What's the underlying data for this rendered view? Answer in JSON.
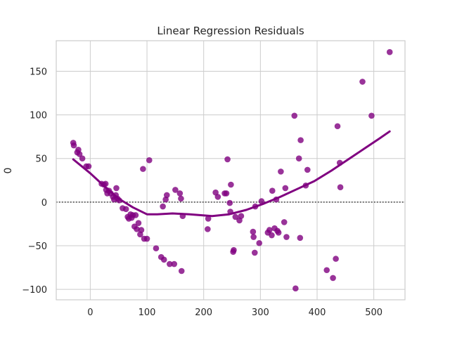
{
  "chart_data": {
    "type": "scatter",
    "title": "Linear Regression Residuals",
    "xlabel": "",
    "ylabel": "0",
    "xlim": [
      -60,
      555
    ],
    "ylim": [
      -112,
      185
    ],
    "xticks": [
      0,
      100,
      200,
      300,
      400,
      500
    ],
    "yticks": [
      -100,
      -50,
      0,
      50,
      100,
      150
    ],
    "grid": true,
    "reference_line": 0,
    "colors": {
      "points": "#800080",
      "line": "#800080",
      "grid": "#cccccc",
      "reference": "#333333",
      "frame": "#cccccc"
    },
    "points": [
      [
        -30,
        68
      ],
      [
        -29,
        65
      ],
      [
        -23,
        57
      ],
      [
        -21,
        60
      ],
      [
        -19,
        55
      ],
      [
        -14,
        50
      ],
      [
        -7,
        41
      ],
      [
        -3,
        41
      ],
      [
        20,
        21
      ],
      [
        24,
        20
      ],
      [
        27,
        21
      ],
      [
        28,
        14
      ],
      [
        30,
        10
      ],
      [
        33,
        13
      ],
      [
        36,
        10
      ],
      [
        40,
        6
      ],
      [
        42,
        3
      ],
      [
        45,
        8
      ],
      [
        46,
        16
      ],
      [
        48,
        4
      ],
      [
        51,
        2
      ],
      [
        57,
        -7
      ],
      [
        63,
        -8
      ],
      [
        66,
        -17
      ],
      [
        68,
        -19
      ],
      [
        71,
        -14
      ],
      [
        73,
        -18
      ],
      [
        75,
        -15
      ],
      [
        78,
        -28
      ],
      [
        80,
        -15
      ],
      [
        82,
        -31
      ],
      [
        85,
        -24
      ],
      [
        88,
        -37
      ],
      [
        90,
        -32
      ],
      [
        93,
        38
      ],
      [
        95,
        -42
      ],
      [
        100,
        -42
      ],
      [
        104,
        48
      ],
      [
        116,
        -53
      ],
      [
        125,
        -63
      ],
      [
        128,
        -5
      ],
      [
        130,
        -66
      ],
      [
        133,
        3
      ],
      [
        135,
        8
      ],
      [
        140,
        -71
      ],
      [
        148,
        -71
      ],
      [
        150,
        14
      ],
      [
        158,
        10
      ],
      [
        160,
        4
      ],
      [
        161,
        -79
      ],
      [
        163,
        -16
      ],
      [
        207,
        -31
      ],
      [
        208,
        -19
      ],
      [
        221,
        11
      ],
      [
        225,
        6
      ],
      [
        237,
        10
      ],
      [
        240,
        10
      ],
      [
        242,
        49
      ],
      [
        246,
        -1
      ],
      [
        248,
        20
      ],
      [
        247,
        -11
      ],
      [
        252,
        -57
      ],
      [
        253,
        -55
      ],
      [
        256,
        -17
      ],
      [
        263,
        -21
      ],
      [
        266,
        -16
      ],
      [
        287,
        -34
      ],
      [
        288,
        -40
      ],
      [
        290,
        -58
      ],
      [
        291,
        -5
      ],
      [
        298,
        -47
      ],
      [
        302,
        1
      ],
      [
        313,
        -35
      ],
      [
        316,
        -32
      ],
      [
        320,
        -38
      ],
      [
        321,
        13
      ],
      [
        325,
        -30
      ],
      [
        328,
        3
      ],
      [
        330,
        -33
      ],
      [
        332,
        -35
      ],
      [
        336,
        35
      ],
      [
        342,
        -23
      ],
      [
        344,
        16
      ],
      [
        346,
        -40
      ],
      [
        360,
        99
      ],
      [
        362,
        -99
      ],
      [
        368,
        50
      ],
      [
        370,
        -41
      ],
      [
        371,
        71
      ],
      [
        380,
        19
      ],
      [
        383,
        37
      ],
      [
        417,
        -78
      ],
      [
        428,
        -87
      ],
      [
        433,
        -65
      ],
      [
        436,
        87
      ],
      [
        440,
        45
      ],
      [
        441,
        17
      ],
      [
        480,
        138
      ],
      [
        496,
        99
      ],
      [
        528,
        172
      ]
    ],
    "smooth_line": [
      [
        -30,
        49
      ],
      [
        0,
        33
      ],
      [
        25,
        18
      ],
      [
        50,
        4
      ],
      [
        75,
        -6
      ],
      [
        100,
        -14
      ],
      [
        118,
        -14
      ],
      [
        145,
        -13
      ],
      [
        175,
        -14
      ],
      [
        215,
        -16
      ],
      [
        245,
        -14
      ],
      [
        275,
        -9
      ],
      [
        305,
        -2
      ],
      [
        335,
        6
      ],
      [
        365,
        15
      ],
      [
        395,
        24
      ],
      [
        425,
        36
      ],
      [
        455,
        49
      ],
      [
        485,
        62
      ],
      [
        510,
        73
      ],
      [
        528,
        81
      ]
    ]
  }
}
